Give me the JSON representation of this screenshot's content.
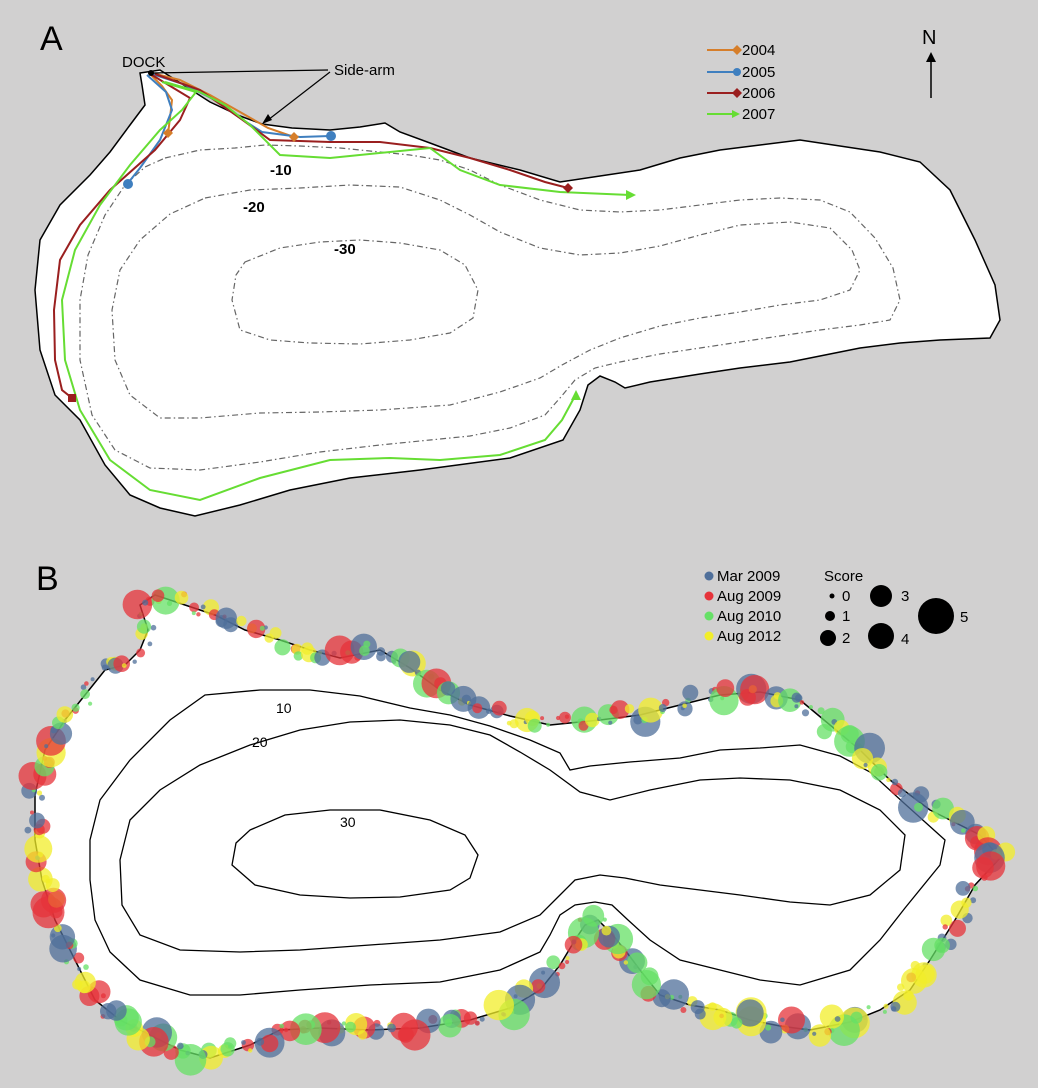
{
  "panelA": {
    "letter": "A",
    "dock_label": "DOCK",
    "sidearm_label": "Side-arm",
    "north_label": "N",
    "depth_labels": [
      "-10",
      "-20",
      "-30"
    ],
    "legend": [
      {
        "label": "2004",
        "color": "#d67e2a",
        "marker": "diamond"
      },
      {
        "label": "2005",
        "color": "#3f7fbf",
        "marker": "circle"
      },
      {
        "label": "2006",
        "color": "#9a1f1f",
        "marker": "diamond"
      },
      {
        "label": "2007",
        "color": "#66dd33",
        "marker": "arrow"
      }
    ]
  },
  "panelB": {
    "letter": "B",
    "depth_labels": [
      "10",
      "20",
      "30"
    ],
    "legend_title": "Score",
    "legend": [
      {
        "label": "Mar 2009",
        "color": "#4f6f9a"
      },
      {
        "label": "Aug 2009",
        "color": "#e6333a"
      },
      {
        "label": "Aug 2010",
        "color": "#66e066"
      },
      {
        "label": "Aug 2012",
        "color": "#f2ee2a"
      }
    ],
    "score_legend": [
      {
        "label": "0",
        "value": 0
      },
      {
        "label": "1",
        "value": 1
      },
      {
        "label": "2",
        "value": 2
      },
      {
        "label": "3",
        "value": 3
      },
      {
        "label": "4",
        "value": 4
      },
      {
        "label": "5",
        "value": 5
      }
    ]
  }
}
